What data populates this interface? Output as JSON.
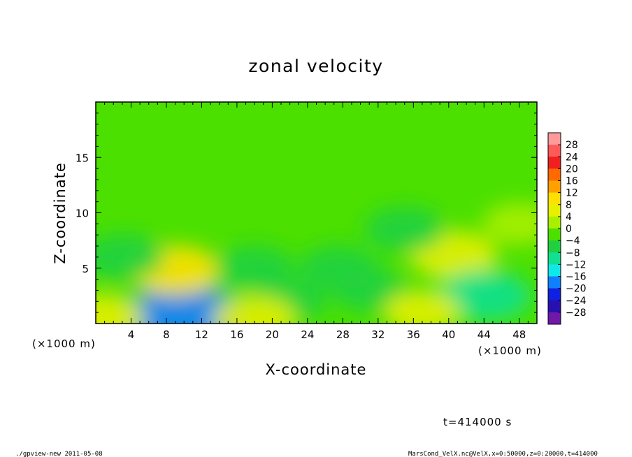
{
  "chart_data": {
    "type": "heatmap",
    "title": "zonal velocity",
    "xlabel": "X-coordinate",
    "ylabel": "Z-coordinate",
    "x_units": "(×1000 m)",
    "y_units": "(×1000 m)",
    "xlim": [
      0,
      50
    ],
    "ylim": [
      0,
      20
    ],
    "x_ticks": [
      "4",
      "8",
      "12",
      "16",
      "20",
      "24",
      "28",
      "32",
      "36",
      "40",
      "44",
      "48"
    ],
    "y_ticks": [
      "5",
      "10",
      "15"
    ],
    "colorbar": {
      "levels": [
        "28",
        "24",
        "20",
        "16",
        "12",
        "8",
        "4",
        "0",
        "−4",
        "−8",
        "−12",
        "−16",
        "−20",
        "−24",
        "−28"
      ],
      "colors": [
        "#ff9a9a",
        "#ff5a5a",
        "#f02020",
        "#ff6a00",
        "#ffa000",
        "#ffe000",
        "#e6f000",
        "#a8f000",
        "#4ce000",
        "#20d040",
        "#10e090",
        "#10e8e8",
        "#1080ff",
        "#1020e0",
        "#2810b0",
        "#7018a8"
      ]
    },
    "features": [
      {
        "x": 10,
        "z": 0.5,
        "u": -18
      },
      {
        "x": 9,
        "z": 4.8,
        "u": 9
      },
      {
        "x": 40.5,
        "z": 6.2,
        "u": 8
      },
      {
        "x": 3,
        "z": 6,
        "u": -7
      },
      {
        "x": 18,
        "z": 5,
        "u": -6
      },
      {
        "x": 27.5,
        "z": 5,
        "u": -6
      },
      {
        "x": 35,
        "z": 8.5,
        "u": -6
      },
      {
        "x": 44,
        "z": 2.5,
        "u": -10
      },
      {
        "x": 31,
        "z": 3,
        "u": -5
      },
      {
        "x": 22,
        "z": 2,
        "u": -4
      },
      {
        "x": 18,
        "z": 0.4,
        "u": 7
      },
      {
        "x": 0.8,
        "z": 0.5,
        "u": 7
      },
      {
        "x": 37,
        "z": 1,
        "u": 5
      },
      {
        "x": 48,
        "z": 9,
        "u": 4
      }
    ],
    "grid": false,
    "legend": "right"
  },
  "annotations": {
    "time": "t=414000 s",
    "footer_left": "./gpview-new  2011-05-08",
    "footer_right": "MarsCond_VelX.nc@VelX,x=0:50000,z=0:20000,t=414000"
  }
}
